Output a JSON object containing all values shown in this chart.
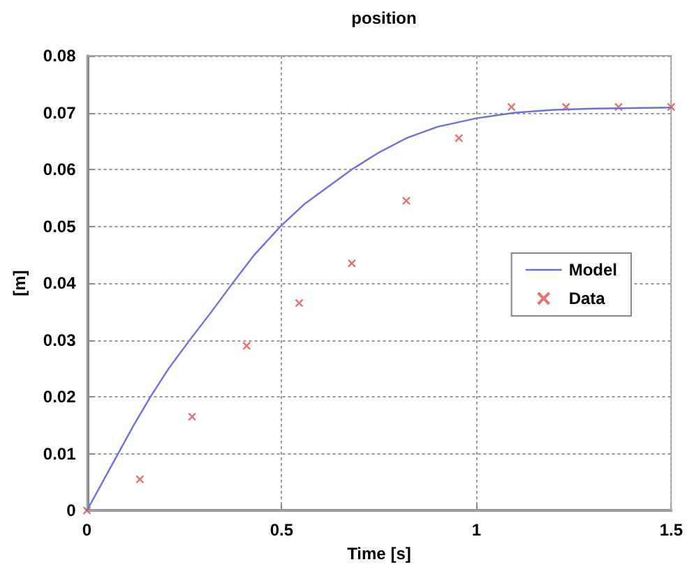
{
  "chart_data": {
    "type": "line",
    "title": "position",
    "xlabel": "Time [s]",
    "ylabel": "[m]",
    "xlim": [
      0,
      1.5
    ],
    "xticks": [
      0,
      0.5,
      1,
      1.5
    ],
    "ylim": [
      0,
      0.08
    ],
    "yticks": [
      0,
      0.01,
      0.02,
      0.03,
      0.04,
      0.05,
      0.06,
      0.07,
      0.08
    ],
    "grid": true,
    "legend": "right",
    "series": [
      {
        "name": "Model",
        "color": "#6f6fe0",
        "marker": "none",
        "line_style": "solid",
        "x": [
          0,
          0.04,
          0.08,
          0.12,
          0.163,
          0.21,
          0.264,
          0.32,
          0.374,
          0.43,
          0.497,
          0.56,
          0.62,
          0.68,
          0.75,
          0.82,
          0.9,
          1.0,
          1.1,
          1.2,
          1.3,
          1.4,
          1.5
        ],
        "values": [
          0,
          0.005,
          0.01,
          0.015,
          0.02,
          0.025,
          0.03,
          0.035,
          0.04,
          0.045,
          0.05,
          0.054,
          0.057,
          0.06,
          0.063,
          0.0655,
          0.0675,
          0.069,
          0.07,
          0.0705,
          0.0707,
          0.0708,
          0.0709
        ]
      },
      {
        "name": "Data",
        "type": "scatter",
        "color": "#e05050",
        "marker": "cross",
        "x": [
          0,
          0.136,
          0.27,
          0.41,
          0.545,
          0.68,
          0.82,
          0.955,
          1.09,
          1.23,
          1.365,
          1.5
        ],
        "values": [
          0,
          0.0055,
          0.0165,
          0.029,
          0.0365,
          0.0435,
          0.0545,
          0.0655,
          0.071,
          0.071,
          0.071,
          0.071
        ]
      }
    ]
  }
}
